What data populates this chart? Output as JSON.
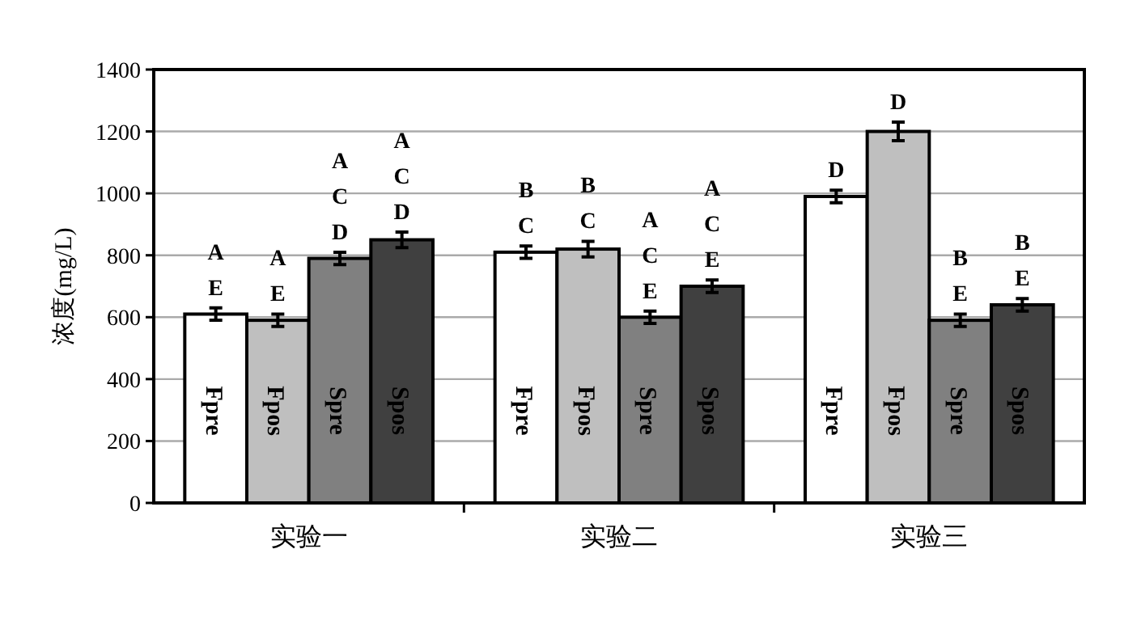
{
  "chart_data": {
    "type": "bar",
    "ylabel": "浓度(mg/L)",
    "categories": [
      "实验一",
      "实验二",
      "实验三"
    ],
    "series": [
      {
        "name": "Fpre",
        "color": "#ffffff",
        "values": [
          610,
          810,
          990
        ],
        "errors": [
          20,
          20,
          20
        ]
      },
      {
        "name": "Fpos",
        "color": "#bfbfbf",
        "values": [
          590,
          820,
          1200
        ],
        "errors": [
          20,
          25,
          30
        ]
      },
      {
        "name": "Spre",
        "color": "#808080",
        "values": [
          790,
          600,
          590
        ],
        "errors": [
          20,
          20,
          20
        ]
      },
      {
        "name": "Spos",
        "color": "#404040",
        "values": [
          850,
          700,
          640
        ],
        "errors": [
          25,
          20,
          20
        ]
      }
    ],
    "annotations": [
      "A\nE",
      "A\nE",
      "A\nC\nD",
      "A\nC\nD",
      "B\nC",
      "B\nC",
      "A\nC\nE",
      "A\nC\nE",
      "D",
      "D",
      "B\nE",
      "B\nE"
    ],
    "ylim": [
      0,
      1400
    ],
    "yticks": [
      0,
      200,
      400,
      600,
      800,
      1000,
      1200,
      1400
    ],
    "grid": "y"
  }
}
